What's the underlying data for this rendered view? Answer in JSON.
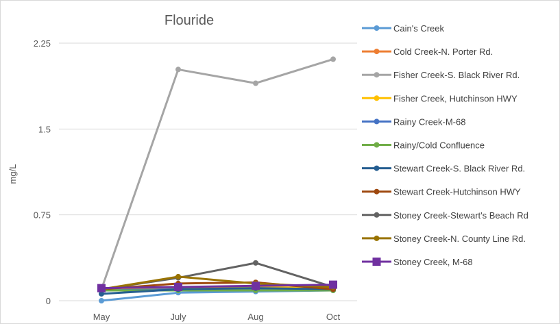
{
  "chart_data": {
    "type": "line",
    "title": "Flouride",
    "xlabel": "",
    "ylabel": "mg/L",
    "categories": [
      "May",
      "July",
      "Aug",
      "Oct"
    ],
    "ylim": [
      0,
      2.25
    ],
    "yticks": [
      0,
      0.75,
      1.5,
      2.25
    ],
    "ytick_labels": [
      "0",
      "0.75",
      "1.5",
      "2.25"
    ],
    "grid": true,
    "legend_position": "right",
    "series": [
      {
        "name": "Cain's Creek",
        "color": "#5B9BD5",
        "marker": "circle",
        "values": [
          0.0,
          0.07,
          0.08,
          0.09
        ]
      },
      {
        "name": "Cold Creek-N. Porter Rd.",
        "color": "#ED7D31",
        "marker": "circle",
        "values": [
          0.1,
          0.11,
          0.11,
          0.1
        ]
      },
      {
        "name": "Fisher Creek-S. Black River Rd.",
        "color": "#A5A5A5",
        "marker": "circle",
        "values": [
          0.1,
          2.02,
          1.9,
          2.11
        ]
      },
      {
        "name": "Fisher Creek, Hutchinson HWY",
        "color": "#FFC000",
        "marker": "circle",
        "values": [
          0.1,
          0.12,
          0.12,
          0.11
        ]
      },
      {
        "name": "Rainy Creek-M-68",
        "color": "#4472C4",
        "marker": "circle",
        "values": [
          0.09,
          0.1,
          0.1,
          0.1
        ]
      },
      {
        "name": "Rainy/Cold Confluence",
        "color": "#70AD47",
        "marker": "circle",
        "values": [
          0.09,
          0.09,
          0.09,
          0.09
        ]
      },
      {
        "name": "Stewart Creek-S. Black River Rd.",
        "color": "#255E91",
        "marker": "circle",
        "values": [
          0.06,
          0.1,
          0.11,
          0.1
        ]
      },
      {
        "name": "Stewart Creek-Hutchinson HWY",
        "color": "#9E480E",
        "marker": "circle",
        "values": [
          0.1,
          0.15,
          0.16,
          0.1
        ]
      },
      {
        "name": "Stoney Creek-Stewart's Beach Rd",
        "color": "#636363",
        "marker": "circle",
        "values": [
          0.1,
          0.2,
          0.33,
          0.12
        ]
      },
      {
        "name": "Stoney Creek-N. County Line Rd.",
        "color": "#997300",
        "marker": "circle",
        "values": [
          0.1,
          0.21,
          0.15,
          0.12
        ]
      },
      {
        "name": "Stoney Creek, M-68",
        "color": "#7030A0",
        "marker": "square",
        "values": [
          0.11,
          0.12,
          0.13,
          0.14
        ]
      }
    ]
  }
}
